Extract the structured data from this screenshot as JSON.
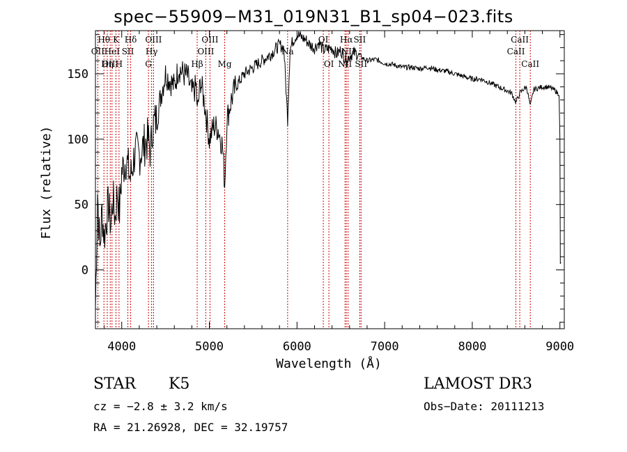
{
  "chart_data": {
    "type": "line",
    "title": "spec−55909−M31_019N31_B1_sp04−023.fits",
    "xlabel": "Wavelength (Å)",
    "ylabel": "Flux (relative)",
    "xlim": [
      3700,
      9050
    ],
    "ylim": [
      -45,
      183
    ],
    "xticks": [
      4000,
      5000,
      6000,
      7000,
      8000,
      9000
    ],
    "yticks": [
      0,
      50,
      100,
      150
    ],
    "series": [
      {
        "name": "flux",
        "x": [
          3700,
          3725,
          3750,
          3775,
          3800,
          3825,
          3850,
          3875,
          3900,
          3925,
          3950,
          3975,
          4000,
          4050,
          4100,
          4150,
          4200,
          4250,
          4300,
          4330,
          4350,
          4400,
          4450,
          4500,
          4550,
          4600,
          4650,
          4700,
          4750,
          4800,
          4850,
          4862,
          4900,
          4950,
          5000,
          5050,
          5100,
          5150,
          5175,
          5200,
          5250,
          5300,
          5400,
          5500,
          5600,
          5700,
          5800,
          5850,
          5893,
          5920,
          5950,
          6000,
          6050,
          6100,
          6150,
          6200,
          6250,
          6300,
          6400,
          6450,
          6500,
          6563,
          6600,
          6650,
          6700,
          6750,
          6800,
          6900,
          7000,
          7100,
          7200,
          7300,
          7400,
          7500,
          7600,
          7700,
          7800,
          7900,
          8000,
          8100,
          8200,
          8300,
          8400,
          8450,
          8498,
          8542,
          8580,
          8620,
          8662,
          8700,
          8750,
          8800,
          8850,
          8900,
          8950,
          8990,
          9000,
          9005,
          9010
        ],
        "y": [
          -30,
          60,
          15,
          45,
          25,
          40,
          50,
          35,
          55,
          40,
          60,
          45,
          75,
          85,
          70,
          90,
          88,
          95,
          100,
          90,
          110,
          115,
          135,
          150,
          145,
          140,
          155,
          150,
          148,
          135,
          140,
          120,
          145,
          125,
          100,
          110,
          108,
          95,
          65,
          115,
          130,
          140,
          150,
          155,
          160,
          165,
          172,
          170,
          115,
          168,
          175,
          180,
          178,
          176,
          172,
          170,
          174,
          168,
          170,
          165,
          168,
          160,
          164,
          166,
          165,
          162,
          160,
          161,
          158,
          157,
          155,
          155,
          154,
          155,
          153,
          152,
          150,
          148,
          146,
          146,
          143,
          140,
          137,
          135,
          128,
          135,
          138,
          140,
          125,
          138,
          139,
          140,
          140,
          139,
          137,
          134,
          100,
          5,
          5
        ]
      }
    ],
    "lines": [
      {
        "label": "Hθ",
        "wave": 3797,
        "row": 0
      },
      {
        "label": "OII",
        "wave": 3727,
        "row": 1
      },
      {
        "label": "OIII",
        "wave": 3869,
        "row": 2
      },
      {
        "label": "Hη",
        "wave": 3835,
        "row": 2
      },
      {
        "label": "K",
        "wave": 3934,
        "row": 0
      },
      {
        "label": "HeI",
        "wave": 3889,
        "row": 1
      },
      {
        "label": "H",
        "wave": 3969,
        "row": 2
      },
      {
        "label": "SII",
        "wave": 4070,
        "row": 1
      },
      {
        "label": "Hδ",
        "wave": 4102,
        "row": 0
      },
      {
        "label": "OIII",
        "wave": 4363,
        "row": 0
      },
      {
        "label": "Hγ",
        "wave": 4341,
        "row": 1
      },
      {
        "label": "G",
        "wave": 4305,
        "row": 2
      },
      {
        "label": "Hβ",
        "wave": 4861,
        "row": 2
      },
      {
        "label": "OIII",
        "wave": 4959,
        "row": 1
      },
      {
        "label": "OIII",
        "wave": 5007,
        "row": 0
      },
      {
        "label": "Mg",
        "wave": 5175,
        "row": 2
      },
      {
        "label": "Na",
        "wave": 5893,
        "row": 1
      },
      {
        "label": "OI",
        "wave": 6300,
        "row": 0
      },
      {
        "label": "NII",
        "wave": 6548,
        "row": 2
      },
      {
        "label": "OI",
        "wave": 6364,
        "row": 2
      },
      {
        "label": "Hα",
        "wave": 6563,
        "row": 0
      },
      {
        "label": "NII",
        "wave": 6583,
        "row": 1
      },
      {
        "label": "SII",
        "wave": 6716,
        "row": 0
      },
      {
        "label": "SII",
        "wave": 6731,
        "row": 2
      },
      {
        "label": "CaII",
        "wave": 8498,
        "row": 1
      },
      {
        "label": "CaII",
        "wave": 8542,
        "row": 0
      },
      {
        "label": "CaII",
        "wave": 8662,
        "row": 2
      }
    ]
  },
  "info": {
    "class": "STAR",
    "subclass": "K5",
    "survey": "LAMOST DR3",
    "cz": "cz = −2.8 ± 3.2 km/s",
    "obs_date": "Obs−Date: 20111213",
    "coords": "RA =  21.26928, DEC =  32.19757"
  }
}
